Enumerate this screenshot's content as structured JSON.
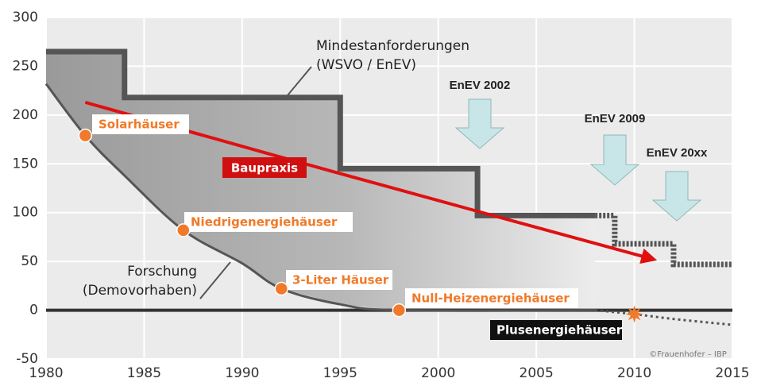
{
  "chart_data": {
    "type": "line",
    "xlim": [
      1980,
      2015
    ],
    "ylim": [
      -50,
      300
    ],
    "xticks": [
      1980,
      1985,
      1990,
      1995,
      2000,
      2005,
      2010,
      2015
    ],
    "yticks": [
      -50,
      0,
      50,
      100,
      150,
      200,
      250,
      300
    ],
    "grid": true,
    "series": [
      {
        "color": "#555555",
        "style": "solid",
        "x": [
          1980,
          1984,
          1984,
          1995,
          1995,
          2002,
          2002,
          2008
        ],
        "values": [
          265,
          265,
          218,
          218,
          145,
          145,
          97,
          97
        ]
      },
      {
        "color": "#555555",
        "style": "dotted",
        "x": [
          2008,
          2009,
          2009,
          2012,
          2012,
          2015
        ],
        "values": [
          97,
          97,
          68,
          68,
          47,
          47
        ]
      },
      {
        "color": "#555555",
        "style": "curve",
        "x": [
          1980,
          1982,
          1984,
          1987,
          1990,
          1992,
          1995,
          1998,
          2008
        ],
        "values": [
          232,
          179,
          138,
          82,
          48,
          22,
          6,
          0,
          0
        ]
      },
      {
        "color": "#555555",
        "style": "curve-dotted",
        "x": [
          2008,
          2010,
          2012,
          2015
        ],
        "values": [
          0,
          -4,
          -9,
          -15
        ]
      },
      {
        "color": "#e01010",
        "style": "arrow",
        "x": [
          1982,
          1995,
          2011
        ],
        "values": [
          213,
          140,
          52
        ]
      }
    ],
    "points": [
      {
        "label": "Solarhäuser",
        "x": 1982,
        "value": 179
      },
      {
        "label": "Niedrigenergiehäuser",
        "x": 1987,
        "value": 82
      },
      {
        "label": "3-Liter Häuser",
        "x": 1992,
        "value": 22
      },
      {
        "label": "Null-Heizenergiehäuser",
        "x": 1998,
        "value": 0
      },
      {
        "label": "Plusenergiehäuser",
        "x": 2010,
        "value": -4
      }
    ],
    "annotations": {
      "requirements": [
        "Mindestanforderungen",
        "(WSVO / EnEV)"
      ],
      "research": [
        "Forschung",
        "(Demovorhaben)"
      ],
      "practice": "Baupraxis",
      "enev": [
        "EnEV 2002",
        "EnEV 2009",
        "EnEV 20xx"
      ],
      "credit": "©Frauenhofer – IBP"
    }
  }
}
